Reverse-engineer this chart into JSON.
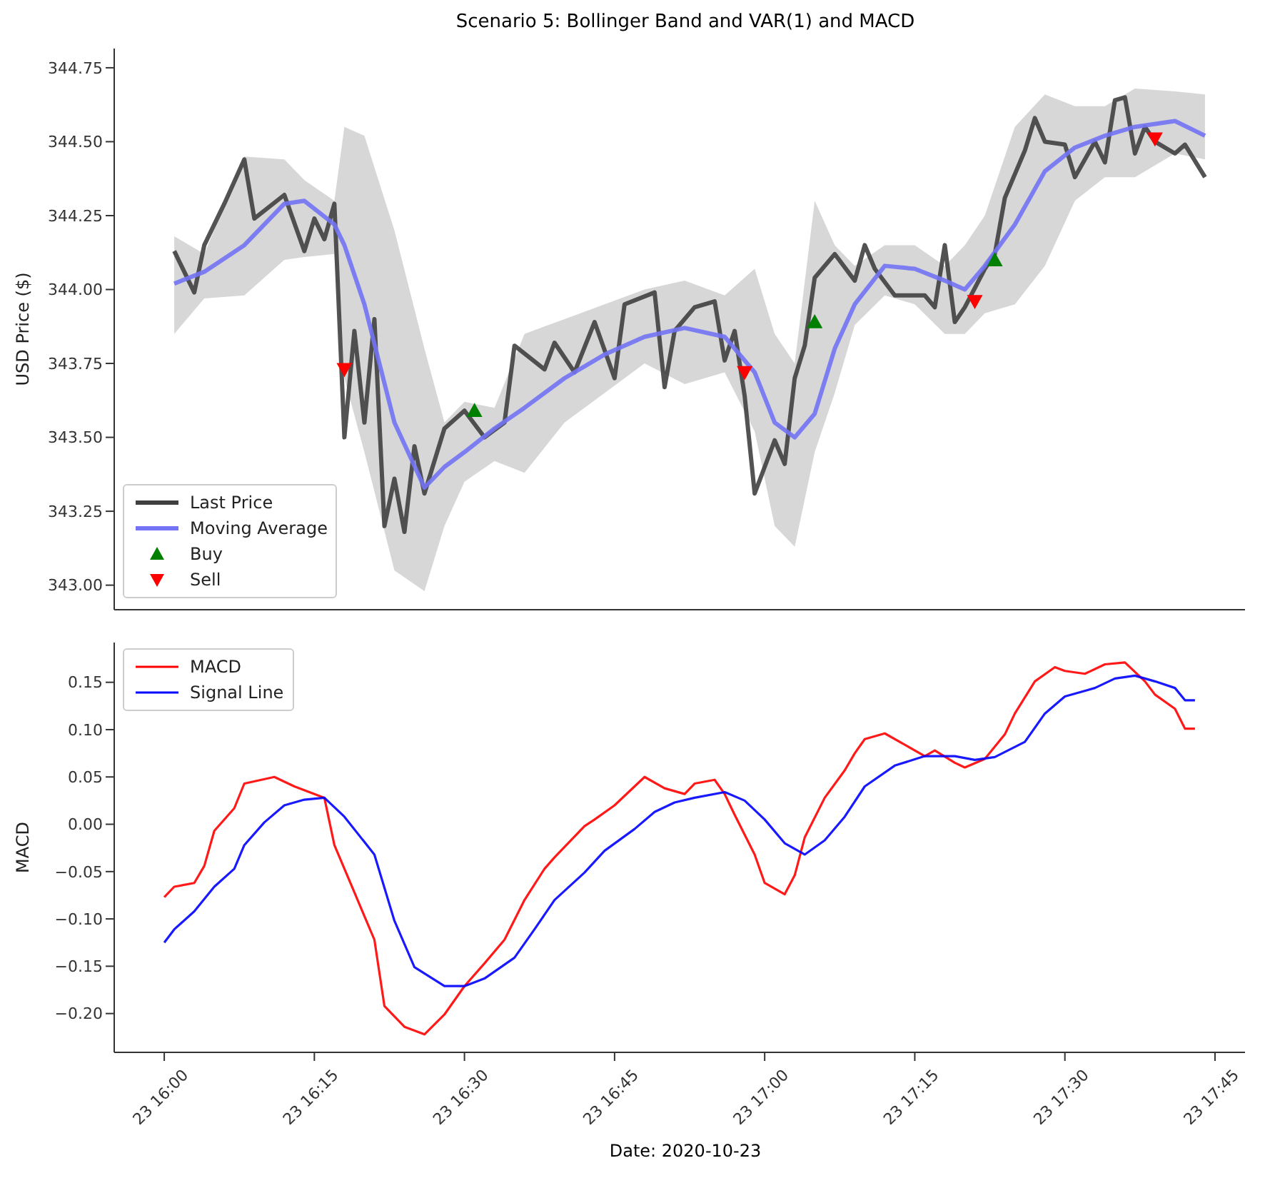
{
  "chart_data": [
    {
      "type": "line",
      "title": "Scenario 5: Bollinger Band and VAR(1) and MACD",
      "ylabel": "USD Price ($)",
      "legend": "bottom left",
      "tick_labels": "y",
      "marker": "none",
      "line_style": "solid",
      "xlim": [
        "2020-10-23T15:55",
        "2020-10-23T17:48"
      ],
      "ylim": [
        342.917,
        344.815
      ],
      "yticks": [
        {
          "value": 343,
          "label": "343.00"
        },
        343.25,
        {
          "value": 343.5,
          "label": "343.50"
        },
        343.75,
        {
          "value": 344,
          "label": "344.00"
        },
        344.25,
        {
          "value": 344.5,
          "label": "344.50"
        },
        344.75
      ],
      "series": [
        {
          "name": "Last Price",
          "color": "#404040",
          "x": [
            "2020-10-23T16:01",
            "2020-10-23T16:02",
            "2020-10-23T16:03",
            "2020-10-23T16:04",
            "2020-10-23T16:06",
            "2020-10-23T16:08",
            "2020-10-23T16:09",
            "2020-10-23T16:12",
            "2020-10-23T16:14",
            "2020-10-23T16:15",
            "2020-10-23T16:16",
            "2020-10-23T16:17",
            "2020-10-23T16:18",
            "2020-10-23T16:19",
            "2020-10-23T16:20",
            "2020-10-23T16:21",
            "2020-10-23T16:22",
            "2020-10-23T16:23",
            "2020-10-23T16:24",
            "2020-10-23T16:25",
            "2020-10-23T16:26",
            "2020-10-23T16:28",
            "2020-10-23T16:30",
            "2020-10-23T16:32",
            "2020-10-23T16:34",
            "2020-10-23T16:35",
            "2020-10-23T16:38",
            "2020-10-23T16:39",
            "2020-10-23T16:41",
            "2020-10-23T16:43",
            "2020-10-23T16:45",
            "2020-10-23T16:46",
            "2020-10-23T16:49",
            "2020-10-23T16:50",
            "2020-10-23T16:51",
            "2020-10-23T16:53",
            "2020-10-23T16:55",
            "2020-10-23T16:56",
            "2020-10-23T16:57",
            "2020-10-23T16:58",
            "2020-10-23T16:59",
            "2020-10-23T17:01",
            "2020-10-23T17:02",
            "2020-10-23T17:03",
            "2020-10-23T17:04",
            "2020-10-23T17:05",
            "2020-10-23T17:07",
            "2020-10-23T17:09",
            "2020-10-23T17:10",
            "2020-10-23T17:11",
            "2020-10-23T17:13",
            "2020-10-23T17:16",
            "2020-10-23T17:17",
            "2020-10-23T17:18",
            "2020-10-23T17:19",
            "2020-10-23T17:20",
            "2020-10-23T17:22",
            "2020-10-23T17:23",
            "2020-10-23T17:24",
            "2020-10-23T17:26",
            "2020-10-23T17:27",
            "2020-10-23T17:28",
            "2020-10-23T17:30",
            "2020-10-23T17:31",
            "2020-10-23T17:33",
            "2020-10-23T17:34",
            "2020-10-23T17:35",
            "2020-10-23T17:36",
            "2020-10-23T17:37",
            "2020-10-23T17:38",
            "2020-10-23T17:39",
            "2020-10-23T17:41",
            "2020-10-23T17:42",
            "2020-10-23T17:44"
          ],
          "values": [
            344.13,
            344.06,
            343.99,
            344.15,
            344.29,
            344.44,
            344.24,
            344.32,
            344.13,
            344.24,
            344.17,
            344.29,
            343.5,
            343.86,
            343.55,
            343.9,
            343.2,
            343.36,
            343.18,
            343.47,
            343.31,
            343.53,
            343.59,
            343.5,
            343.55,
            343.81,
            343.73,
            343.82,
            343.72,
            343.89,
            343.7,
            343.95,
            343.99,
            343.67,
            343.86,
            343.94,
            343.96,
            343.76,
            343.86,
            343.64,
            343.31,
            343.49,
            343.41,
            343.7,
            343.81,
            344.04,
            344.12,
            344.03,
            344.15,
            344.07,
            343.98,
            343.98,
            343.94,
            344.15,
            343.89,
            343.94,
            344.07,
            344.12,
            344.31,
            344.47,
            344.58,
            344.5,
            344.49,
            344.38,
            344.5,
            344.43,
            344.64,
            344.65,
            344.46,
            344.55,
            344.5,
            344.46,
            344.49,
            344.38
          ]
        },
        {
          "name": "Moving Average",
          "color": "#7373f5",
          "x": [
            "2020-10-23T16:01",
            "2020-10-23T16:04",
            "2020-10-23T16:08",
            "2020-10-23T16:12",
            "2020-10-23T16:14",
            "2020-10-23T16:17",
            "2020-10-23T16:18",
            "2020-10-23T16:20",
            "2020-10-23T16:23",
            "2020-10-23T16:26",
            "2020-10-23T16:28",
            "2020-10-23T16:30",
            "2020-10-23T16:33",
            "2020-10-23T16:36",
            "2020-10-23T16:40",
            "2020-10-23T16:44",
            "2020-10-23T16:48",
            "2020-10-23T16:52",
            "2020-10-23T16:56",
            "2020-10-23T16:59",
            "2020-10-23T17:01",
            "2020-10-23T17:03",
            "2020-10-23T17:05",
            "2020-10-23T17:07",
            "2020-10-23T17:09",
            "2020-10-23T17:12",
            "2020-10-23T17:15",
            "2020-10-23T17:18",
            "2020-10-23T17:20",
            "2020-10-23T17:22",
            "2020-10-23T17:25",
            "2020-10-23T17:28",
            "2020-10-23T17:31",
            "2020-10-23T17:34",
            "2020-10-23T17:37",
            "2020-10-23T17:41",
            "2020-10-23T17:44"
          ],
          "values": [
            344.02,
            344.06,
            344.15,
            344.29,
            344.3,
            344.22,
            344.15,
            343.95,
            343.55,
            343.33,
            343.4,
            343.45,
            343.53,
            343.6,
            343.7,
            343.78,
            343.84,
            343.87,
            343.84,
            343.72,
            343.55,
            343.5,
            343.58,
            343.8,
            343.95,
            344.08,
            344.07,
            344.03,
            344,
            344.08,
            344.22,
            344.4,
            344.48,
            344.52,
            344.55,
            344.57,
            344.52
          ],
          "lower": [
            343.85,
            343.97,
            343.98,
            344.1,
            344.11,
            344.12,
            343.7,
            343.45,
            343.05,
            342.98,
            343.2,
            343.35,
            343.42,
            343.38,
            343.55,
            343.65,
            343.75,
            343.68,
            343.72,
            343.52,
            343.2,
            343.13,
            343.45,
            343.65,
            343.88,
            343.98,
            343.95,
            343.85,
            343.85,
            343.92,
            343.95,
            344.08,
            344.3,
            344.38,
            344.38,
            344.46,
            344.44
          ],
          "upper": [
            344.18,
            344.12,
            344.45,
            344.44,
            344.37,
            344.3,
            344.55,
            344.52,
            344.2,
            343.8,
            343.55,
            343.62,
            343.6,
            343.85,
            343.9,
            343.95,
            344,
            344.03,
            343.98,
            344.07,
            343.85,
            343.75,
            344.3,
            344.15,
            344.08,
            344.15,
            344.15,
            344.08,
            344.15,
            344.25,
            344.55,
            344.66,
            344.62,
            344.62,
            344.68,
            344.67,
            344.66
          ]
        },
        {
          "name": "Buy",
          "type": "scatter",
          "marker": "triangle",
          "color": "#008000",
          "x": [
            "2020-10-23T16:31",
            "2020-10-23T17:05",
            "2020-10-23T17:23"
          ],
          "values": [
            343.59,
            343.89,
            344.1
          ]
        },
        {
          "name": "Sell",
          "type": "scatter",
          "marker": "triangle-down",
          "color": "#ff0000",
          "x": [
            "2020-10-23T16:18",
            "2020-10-23T16:58",
            "2020-10-23T17:21",
            "2020-10-23T17:39"
          ],
          "values": [
            343.73,
            343.72,
            343.96,
            344.51
          ]
        }
      ]
    },
    {
      "type": "line",
      "xlabel": "Date: 2020-10-23",
      "ylabel": "MACD",
      "legend": "top left",
      "marker": "none",
      "line_style": "solid",
      "xlim": [
        "2020-10-23T15:55",
        "2020-10-23T17:48"
      ],
      "ylim": [
        -0.241,
        0.192
      ],
      "xticks": [
        {
          "value": "2020-10-23T16:00",
          "label": "23 16:00"
        },
        {
          "value": "2020-10-23T16:15",
          "label": "23 16:15"
        },
        {
          "value": "2020-10-23T16:30",
          "label": "23 16:30"
        },
        {
          "value": "2020-10-23T16:45",
          "label": "23 16:45"
        },
        {
          "value": "2020-10-23T17:00",
          "label": "23 17:00"
        },
        {
          "value": "2020-10-23T17:15",
          "label": "23 17:15"
        },
        {
          "value": "2020-10-23T17:30",
          "label": "23 17:30"
        },
        {
          "value": "2020-10-23T17:45",
          "label": "23 17:45"
        }
      ],
      "yticks": [
        {
          "value": -0.2,
          "label": "−0.20"
        },
        {
          "value": -0.15,
          "label": "−0.15"
        },
        {
          "value": -0.1,
          "label": "−0.10"
        },
        {
          "value": -0.05,
          "label": "−0.05"
        },
        {
          "value": 0,
          "label": "0.00"
        },
        0.05,
        {
          "value": 0.1,
          "label": "0.10"
        },
        0.15
      ],
      "series": [
        {
          "name": "MACD",
          "color": "#ff0000",
          "x": [
            "2020-10-23T16:00",
            "2020-10-23T16:01",
            "2020-10-23T16:03",
            "2020-10-23T16:04",
            "2020-10-23T16:05",
            "2020-10-23T16:07",
            "2020-10-23T16:08",
            "2020-10-23T16:11",
            "2020-10-23T16:13",
            "2020-10-23T16:16",
            "2020-10-23T16:17",
            "2020-10-23T16:19",
            "2020-10-23T16:21",
            "2020-10-23T16:22",
            "2020-10-23T16:24",
            "2020-10-23T16:26",
            "2020-10-23T16:28",
            "2020-10-23T16:30",
            "2020-10-23T16:32",
            "2020-10-23T16:34",
            "2020-10-23T16:36",
            "2020-10-23T16:38",
            "2020-10-23T16:39",
            "2020-10-23T16:42",
            "2020-10-23T16:43",
            "2020-10-23T16:45",
            "2020-10-23T16:48",
            "2020-10-23T16:50",
            "2020-10-23T16:52",
            "2020-10-23T16:53",
            "2020-10-23T16:55",
            "2020-10-23T16:56",
            "2020-10-23T16:57",
            "2020-10-23T16:59",
            "2020-10-23T17:00",
            "2020-10-23T17:02",
            "2020-10-23T17:03",
            "2020-10-23T17:04",
            "2020-10-23T17:06",
            "2020-10-23T17:08",
            "2020-10-23T17:09",
            "2020-10-23T17:10",
            "2020-10-23T17:12",
            "2020-10-23T17:14",
            "2020-10-23T17:16",
            "2020-10-23T17:17",
            "2020-10-23T17:19",
            "2020-10-23T17:20",
            "2020-10-23T17:22",
            "2020-10-23T17:24",
            "2020-10-23T17:25",
            "2020-10-23T17:27",
            "2020-10-23T17:29",
            "2020-10-23T17:30",
            "2020-10-23T17:32",
            "2020-10-23T17:34",
            "2020-10-23T17:36",
            "2020-10-23T17:38",
            "2020-10-23T17:39",
            "2020-10-23T17:41",
            "2020-10-23T17:42",
            "2020-10-23T17:43"
          ],
          "values": [
            -0.077,
            -0.066,
            -0.062,
            -0.044,
            -0.007,
            0.017,
            0.043,
            0.05,
            0.04,
            0.028,
            -0.022,
            -0.072,
            -0.122,
            -0.192,
            -0.214,
            -0.222,
            -0.201,
            -0.171,
            -0.147,
            -0.122,
            -0.08,
            -0.047,
            -0.035,
            -0.002,
            0.005,
            0.02,
            0.05,
            0.038,
            0.032,
            0.043,
            0.047,
            0.032,
            0.01,
            -0.032,
            -0.062,
            -0.074,
            -0.054,
            -0.014,
            0.028,
            0.057,
            0.075,
            0.09,
            0.096,
            0.084,
            0.072,
            0.078,
            0.065,
            0.06,
            0.069,
            0.095,
            0.117,
            0.151,
            0.166,
            0.162,
            0.159,
            0.169,
            0.171,
            0.151,
            0.137,
            0.122,
            0.101,
            0.101
          ]
        },
        {
          "name": "Signal Line",
          "color": "#0000ff",
          "x": [
            "2020-10-23T16:00",
            "2020-10-23T16:01",
            "2020-10-23T16:03",
            "2020-10-23T16:05",
            "2020-10-23T16:07",
            "2020-10-23T16:08",
            "2020-10-23T16:10",
            "2020-10-23T16:12",
            "2020-10-23T16:14",
            "2020-10-23T16:16",
            "2020-10-23T16:18",
            "2020-10-23T16:21",
            "2020-10-23T16:23",
            "2020-10-23T16:25",
            "2020-10-23T16:28",
            "2020-10-23T16:30",
            "2020-10-23T16:32",
            "2020-10-23T16:35",
            "2020-10-23T16:37",
            "2020-10-23T16:39",
            "2020-10-23T16:42",
            "2020-10-23T16:44",
            "2020-10-23T16:47",
            "2020-10-23T16:49",
            "2020-10-23T16:51",
            "2020-10-23T16:53",
            "2020-10-23T16:56",
            "2020-10-23T16:58",
            "2020-10-23T17:00",
            "2020-10-23T17:02",
            "2020-10-23T17:04",
            "2020-10-23T17:06",
            "2020-10-23T17:08",
            "2020-10-23T17:10",
            "2020-10-23T17:13",
            "2020-10-23T17:16",
            "2020-10-23T17:19",
            "2020-10-23T17:21",
            "2020-10-23T17:23",
            "2020-10-23T17:26",
            "2020-10-23T17:28",
            "2020-10-23T17:30",
            "2020-10-23T17:33",
            "2020-10-23T17:35",
            "2020-10-23T17:37",
            "2020-10-23T17:39",
            "2020-10-23T17:41",
            "2020-10-23T17:42",
            "2020-10-23T17:43"
          ],
          "values": [
            -0.125,
            -0.111,
            -0.092,
            -0.066,
            -0.047,
            -0.022,
            0.002,
            0.02,
            0.026,
            0.028,
            0.008,
            -0.032,
            -0.102,
            -0.151,
            -0.171,
            -0.171,
            -0.163,
            -0.141,
            -0.111,
            -0.08,
            -0.051,
            -0.028,
            -0.005,
            0.013,
            0.023,
            0.028,
            0.034,
            0.025,
            0.005,
            -0.02,
            -0.032,
            -0.017,
            0.008,
            0.04,
            0.062,
            0.072,
            0.072,
            0.068,
            0.071,
            0.087,
            0.117,
            0.135,
            0.144,
            0.154,
            0.157,
            0.151,
            0.144,
            0.131,
            0.131
          ]
        }
      ]
    }
  ]
}
